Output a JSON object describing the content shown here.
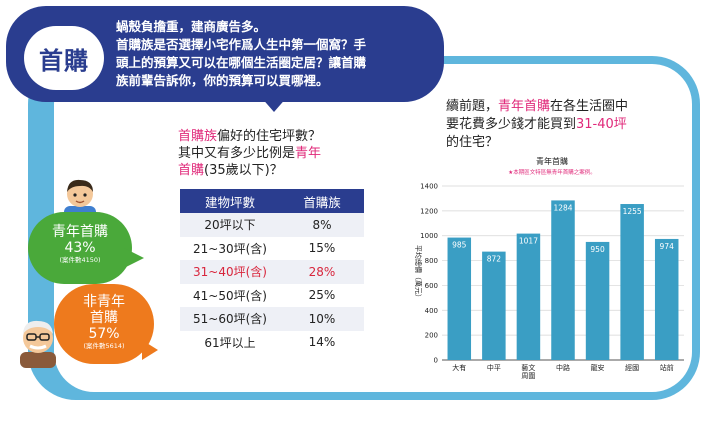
{
  "header": {
    "badge": "首購",
    "lines": [
      "蝸殼負擔重，建商廣告多。",
      "首購族是否選擇小宅作爲人生中第一個窩？手",
      "頭上的預算又可以在哪個生活圈定居？讓首購",
      "族前輩告訴你，你的預算可以買哪裡。"
    ]
  },
  "table": {
    "title_parts": {
      "p1": "首購族",
      "p2": "偏好的住宅坪數？",
      "p3": "其中又有多少比例是",
      "p4": "青年",
      "p5": "首購",
      "p6": "(35歲以下)？"
    },
    "headers": [
      "建物坪數",
      "首購族"
    ],
    "rows": [
      [
        "20坪以下",
        "8%"
      ],
      [
        "21~30坪(含)",
        "15%"
      ],
      [
        "31~40坪(含)",
        "28%"
      ],
      [
        "41~50坪(含)",
        "25%"
      ],
      [
        "51~60坪(含)",
        "10%"
      ],
      [
        "61坪以上",
        "14%"
      ]
    ]
  },
  "bubbles": {
    "young": {
      "label": "青年首購",
      "pct": "43%",
      "count": "(案件數4150)"
    },
    "older": {
      "label1": "非青年",
      "label2": "首購",
      "pct": "57%",
      "count": "(案件數5614)"
    }
  },
  "intro": {
    "p1": "續前題，",
    "p2": "青年首購",
    "p3": "在各生活圈中",
    "p4": "要花費多少錢才能買到",
    "p5": "31-40坪",
    "p6": "的住宅？"
  },
  "chart_data": {
    "type": "bar",
    "title": "青年首購",
    "subtitle": "★本期區文特區無青年首購之案例。",
    "ylabel": "平均總價（萬元）",
    "categories": [
      "大有",
      "中平",
      "藝文\n周圍",
      "中路",
      "龍安",
      "經國",
      "站前"
    ],
    "values": [
      985,
      872,
      1017,
      1284,
      950,
      1255,
      974
    ],
    "ylim": [
      0,
      1400
    ],
    "yticks": [
      0,
      200,
      400,
      600,
      800,
      1000,
      1200,
      1400
    ],
    "grid": true,
    "colors": {
      "bar": "#3a9ec4",
      "label": "#ffffff",
      "subtitle": "#e0297a"
    }
  }
}
